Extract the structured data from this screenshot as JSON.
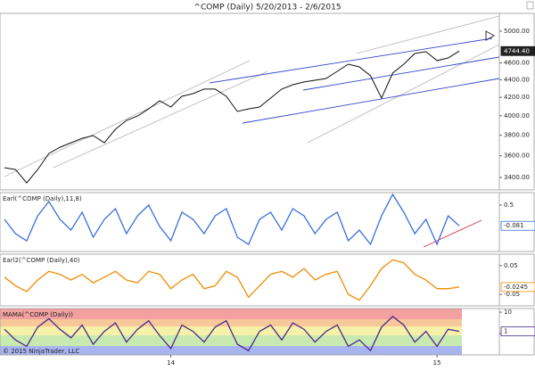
{
  "chart_data": [
    {
      "type": "line",
      "title": "^COMP (Daily)  5/20/2013 - 2/6/2015",
      "log_scale": true,
      "ylim": [
        3290,
        5240
      ],
      "yticks": [
        {
          "value": 3400,
          "label": "3400.00"
        },
        {
          "value": 3600,
          "label": "3600.00"
        },
        {
          "value": 3800,
          "label": "3800.00"
        },
        {
          "value": 4000,
          "label": "4000.00"
        },
        {
          "value": 4200,
          "label": "4200.00"
        },
        {
          "value": 4400,
          "label": "4400.00"
        },
        {
          "value": 4600,
          "label": "4600.00"
        },
        {
          "value": 5000,
          "label": "5000.00"
        }
      ],
      "series": [
        {
          "name": "^COMP",
          "color": "#111111",
          "value_label": "4744.40",
          "values": [
            3488,
            3472,
            3352,
            3472,
            3622,
            3682,
            3726,
            3770,
            3797,
            3726,
            3860,
            3952,
            3998,
            4074,
            4162,
            4094,
            4211,
            4241,
            4292,
            4292,
            4211,
            4046,
            4074,
            4094,
            4191,
            4292,
            4342,
            4373,
            4393,
            4414,
            4498,
            4583,
            4551,
            4445,
            4191,
            4476,
            4583,
            4714,
            4737,
            4627,
            4659,
            4744.4
          ]
        }
      ]
    },
    {
      "type": "line",
      "title": "Earl(^COMP (Daily),11,8)",
      "ylim": [
        -0.8,
        0.85
      ],
      "yticks": [
        0.5
      ],
      "series": [
        {
          "name": "Earl",
          "color": "#3a6fd8",
          "values": [
            0.1,
            -0.3,
            -0.5,
            0.2,
            0.6,
            0.1,
            -0.2,
            0.3,
            -0.4,
            0.1,
            0.4,
            -0.3,
            0.2,
            0.5,
            -0.1,
            -0.5,
            0.3,
            0.1,
            -0.3,
            0.2,
            0.4,
            -0.4,
            -0.6,
            0.1,
            0.3,
            -0.2,
            0.4,
            0.2,
            -0.3,
            0.1,
            0.3,
            -0.5,
            -0.2,
            -0.6,
            0.2,
            0.8,
            0.3,
            -0.3,
            0.1,
            -0.6,
            0.2,
            -0.081
          ]
        }
      ]
    },
    {
      "type": "line",
      "title": "Earl2(^COMP (Daily),40)",
      "ylim": [
        -0.09,
        0.09
      ],
      "yticks": [
        0.05,
        -0.05
      ],
      "series": [
        {
          "name": "Earl2",
          "color": "#f08c00",
          "values": [
            0.01,
            -0.02,
            -0.04,
            0.0,
            0.03,
            0.02,
            0.0,
            0.02,
            -0.01,
            0.01,
            0.03,
            0.0,
            -0.01,
            0.03,
            0.02,
            -0.03,
            0.0,
            0.02,
            -0.03,
            -0.02,
            0.03,
            0.01,
            -0.06,
            -0.02,
            0.02,
            0.03,
            0.01,
            0.04,
            0.0,
            0.02,
            0.03,
            -0.05,
            -0.07,
            -0.02,
            0.04,
            0.07,
            0.06,
            0.02,
            0.0,
            -0.03,
            -0.03,
            -0.0245
          ]
        }
      ]
    },
    {
      "type": "line",
      "title": "MAMA(^COMP (Daily))",
      "annotation": "© 2015 NinjaTrader, LLC",
      "ylim": [
        -10,
        11.7
      ],
      "yticks": [
        10,
        0
      ],
      "categories": [
        null,
        null,
        null,
        null,
        null,
        null,
        null,
        null,
        null,
        null,
        null,
        null,
        null,
        null,
        null,
        "14",
        null,
        null,
        null,
        null,
        null,
        null,
        null,
        null,
        null,
        null,
        null,
        null,
        null,
        null,
        null,
        null,
        null,
        null,
        null,
        null,
        null,
        null,
        null,
        "15",
        null,
        null
      ],
      "series": [
        {
          "name": "MAMA",
          "color": "#4b2a8a",
          "values": [
            2,
            -3,
            -6,
            3,
            7,
            2,
            -2,
            4,
            -5,
            1,
            5,
            -4,
            2,
            6,
            -1,
            -7,
            4,
            1,
            -4,
            3,
            6,
            -5,
            -8,
            1,
            4,
            -3,
            5,
            2,
            -4,
            1,
            4,
            -6,
            -3,
            -8,
            3,
            8,
            4,
            -4,
            1,
            -6,
            2,
            1
          ]
        }
      ]
    }
  ]
}
